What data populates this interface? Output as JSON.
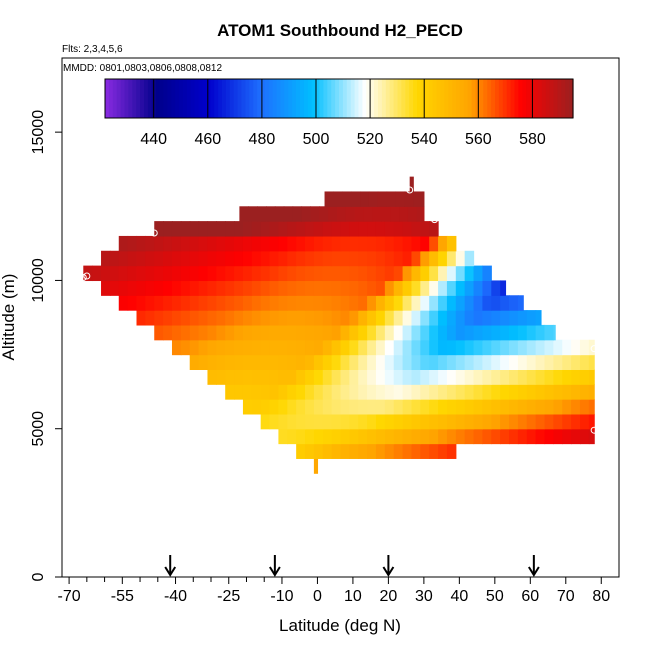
{
  "chart_data": {
    "type": "heatmap",
    "title": "ATOM1 Southbound H2_PECD",
    "subtitle_flights": "Flts: 2,3,4,5,6",
    "subtitle_dates": "MMDD: 0801,0803,0806,0808,0812",
    "xlabel": "Latitude (deg N)",
    "ylabel": "Altitude (m)",
    "xlim": [
      -72,
      85
    ],
    "ylim": [
      0,
      17500
    ],
    "x_ticks": [
      -70,
      -55,
      -40,
      -25,
      -10,
      0,
      10,
      20,
      30,
      40,
      50,
      60,
      70,
      80
    ],
    "y_ticks": [
      0,
      5000,
      10000,
      15000
    ],
    "colorbar": {
      "min": 422,
      "max": 595,
      "ticks": [
        440,
        460,
        480,
        500,
        520,
        540,
        560,
        580
      ],
      "colors": [
        "#8a2be2",
        "#00008b",
        "#0000cd",
        "#1e6fff",
        "#00bfff",
        "#ffffff",
        "#ffd700",
        "#ffa500",
        "#ff0000",
        "#9b2020"
      ]
    },
    "arrows_latitude": [
      -41.5,
      -12,
      20,
      61
    ],
    "altitude_bins": [
      {
        "alt": 3750,
        "lat_min": -1,
        "lat_max": 0
      },
      {
        "alt": 4250,
        "lat_min": -6,
        "lat_max": 39
      },
      {
        "alt": 4750,
        "lat_min": -11,
        "lat_max": 78
      },
      {
        "alt": 5250,
        "lat_min": -16,
        "lat_max": 78
      },
      {
        "alt": 5750,
        "lat_min": -21,
        "lat_max": 78
      },
      {
        "alt": 6250,
        "lat_min": -26,
        "lat_max": 78
      },
      {
        "alt": 6750,
        "lat_min": -31,
        "lat_max": 78
      },
      {
        "alt": 7250,
        "lat_min": -36,
        "lat_max": 78
      },
      {
        "alt": 7750,
        "lat_min": -41,
        "lat_max": 78
      },
      {
        "alt": 8250,
        "lat_min": -46,
        "lat_max": 67
      },
      {
        "alt": 8750,
        "lat_min": -51,
        "lat_max": 63
      },
      {
        "alt": 9250,
        "lat_min": -56,
        "lat_max": 58
      },
      {
        "alt": 9750,
        "lat_min": -61,
        "lat_max": 53
      },
      {
        "alt": 10250,
        "lat_min": -66,
        "lat_max": 49
      },
      {
        "alt": 10750,
        "lat_min": -61,
        "lat_max": 44
      },
      {
        "alt": 11250,
        "lat_min": -56,
        "lat_max": 39
      },
      {
        "alt": 11750,
        "lat_min": -46,
        "lat_max": 34
      },
      {
        "alt": 12250,
        "lat_min": -22,
        "lat_max": 30
      },
      {
        "alt": 12750,
        "lat_min": 2,
        "lat_max": 30
      },
      {
        "alt": 13250,
        "lat_min": 26,
        "lat_max": 27
      }
    ],
    "circle_markers": [
      {
        "lat": -46,
        "alt": 11600
      },
      {
        "lat": -65,
        "alt": 10150
      },
      {
        "lat": -66,
        "alt": 10100
      },
      {
        "lat": 33,
        "alt": 12050
      },
      {
        "lat": 26,
        "alt": 13050
      },
      {
        "lat": 78,
        "alt": 7700
      },
      {
        "lat": 78,
        "alt": 4950
      }
    ]
  }
}
